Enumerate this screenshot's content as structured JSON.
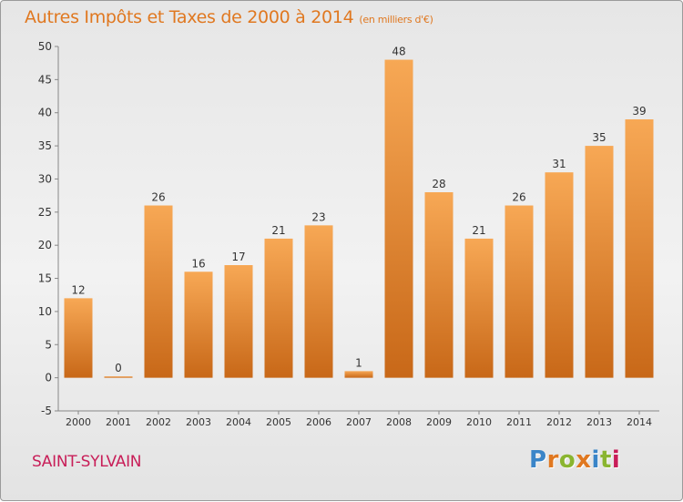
{
  "title": "Autres Impôts et Taxes de 2000 à 2014",
  "unit": "(en milliers d'€)",
  "commune": "SAINT-SYLVAIN",
  "logo": {
    "text": "Proxiti",
    "colors": [
      "#3a85c8",
      "#e07820",
      "#8ab530",
      "#e07820",
      "#3a85c8",
      "#8ab530",
      "#c81e58"
    ]
  },
  "colors": {
    "bar_light": "#f7a855",
    "bar_dark": "#c86818",
    "text": "#333333",
    "title": "#e07820",
    "commune": "#c81e58"
  },
  "chart_data": {
    "type": "bar",
    "title": "Autres Impôts et Taxes de 2000 à 2014",
    "subtitle": "(en milliers d'€)",
    "categories": [
      "2000",
      "2001",
      "2002",
      "2003",
      "2004",
      "2005",
      "2006",
      "2007",
      "2008",
      "2009",
      "2010",
      "2011",
      "2012",
      "2013",
      "2014"
    ],
    "values": [
      12,
      0,
      26,
      16,
      17,
      21,
      23,
      1,
      48,
      28,
      21,
      26,
      31,
      35,
      39
    ],
    "data_labels": [
      "12",
      "0",
      "26",
      "16",
      "17",
      "21",
      "23",
      "1",
      "48",
      "28",
      "21",
      "26",
      "31",
      "35",
      "39"
    ],
    "ylim": [
      -5,
      50
    ],
    "yticks": [
      -5,
      0,
      5,
      10,
      15,
      20,
      25,
      30,
      35,
      40,
      45,
      50
    ],
    "grid": false,
    "xlabel": "",
    "ylabel": ""
  }
}
